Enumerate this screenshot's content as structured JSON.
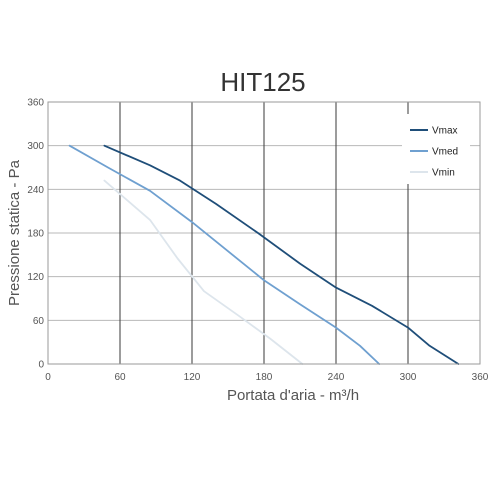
{
  "chart_data": {
    "type": "line",
    "title": "HIT125",
    "xlabel": "Portata d'aria - m³/h",
    "ylabel": "Pressione statica - Pa",
    "xlim": [
      0,
      360
    ],
    "ylim": [
      0,
      360
    ],
    "xticks": [
      0,
      60,
      120,
      180,
      240,
      300,
      360
    ],
    "yticks": [
      0,
      60,
      120,
      180,
      240,
      300,
      360
    ],
    "grid": true,
    "legend_position": "top-right",
    "series": [
      {
        "name": "Vmax",
        "color": "#1f4e79",
        "points": [
          [
            47,
            300
          ],
          [
            85,
            273
          ],
          [
            110,
            252
          ],
          [
            140,
            220
          ],
          [
            175,
            180
          ],
          [
            210,
            138
          ],
          [
            240,
            105
          ],
          [
            270,
            80
          ],
          [
            300,
            50
          ],
          [
            318,
            25
          ],
          [
            342,
            0
          ]
        ]
      },
      {
        "name": "Vmed",
        "color": "#6fa0d0",
        "points": [
          [
            18,
            300
          ],
          [
            50,
            270
          ],
          [
            85,
            238
          ],
          [
            120,
            195
          ],
          [
            150,
            155
          ],
          [
            180,
            115
          ],
          [
            210,
            82
          ],
          [
            240,
            50
          ],
          [
            260,
            25
          ],
          [
            276,
            0
          ]
        ]
      },
      {
        "name": "Vmin",
        "color": "#dde5ec",
        "points": [
          [
            47,
            252
          ],
          [
            85,
            198
          ],
          [
            108,
            145
          ],
          [
            130,
            100
          ],
          [
            160,
            65
          ],
          [
            185,
            35
          ],
          [
            212,
            0
          ]
        ]
      }
    ]
  }
}
